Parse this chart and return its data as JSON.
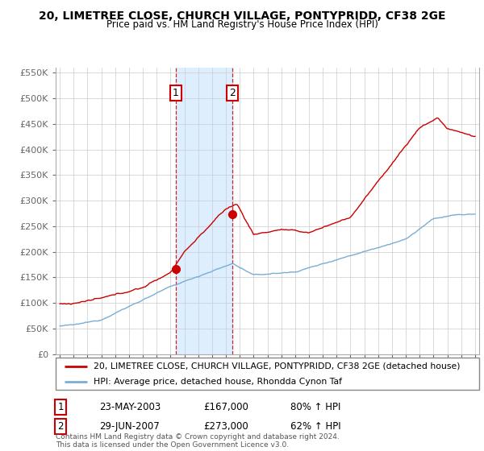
{
  "title_line1": "20, LIMETREE CLOSE, CHURCH VILLAGE, PONTYPRIDD, CF38 2GE",
  "title_line2": "Price paid vs. HM Land Registry's House Price Index (HPI)",
  "hpi_legend": "HPI: Average price, detached house, Rhondda Cynon Taf",
  "property_legend": "20, LIMETREE CLOSE, CHURCH VILLAGE, PONTYPRIDD, CF38 2GE (detached house)",
  "transaction1_date": "23-MAY-2003",
  "transaction1_price": "£167,000",
  "transaction1_hpi": "80% ↑ HPI",
  "transaction2_date": "29-JUN-2007",
  "transaction2_price": "£273,000",
  "transaction2_hpi": "62% ↑ HPI",
  "footer": "Contains HM Land Registry data © Crown copyright and database right 2024.\nThis data is licensed under the Open Government Licence v3.0.",
  "ylim": [
    0,
    560000
  ],
  "yticks": [
    0,
    50000,
    100000,
    150000,
    200000,
    250000,
    300000,
    350000,
    400000,
    450000,
    500000,
    550000
  ],
  "ytick_labels": [
    "£0",
    "£50K",
    "£100K",
    "£150K",
    "£200K",
    "£250K",
    "£300K",
    "£350K",
    "£400K",
    "£450K",
    "£500K",
    "£550K"
  ],
  "hpi_color": "#7aadd4",
  "property_color": "#cc0000",
  "transaction1_x": 2003.38,
  "transaction2_x": 2007.49,
  "highlight_color": "#ddeeff",
  "grid_color": "#cccccc",
  "background_color": "#ffffff"
}
